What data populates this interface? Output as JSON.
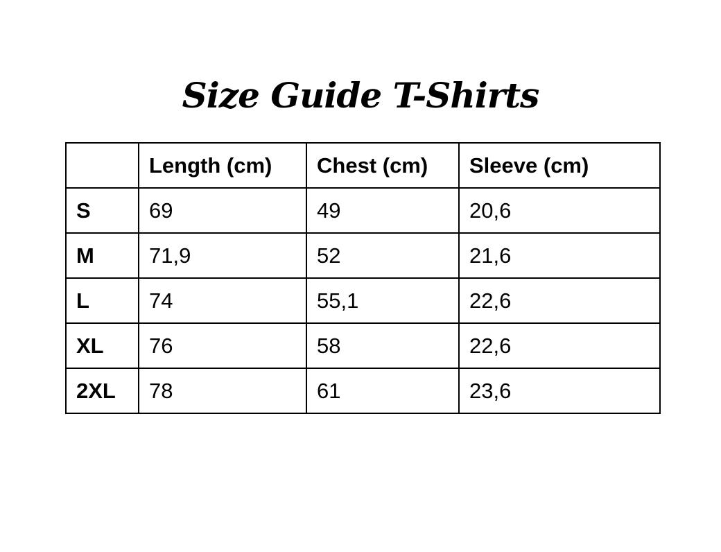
{
  "title": "Size Guide T-Shirts",
  "headers": [
    "",
    "Length (cm)",
    "Chest (cm)",
    "Sleeve (cm)"
  ],
  "rows": [
    [
      "S",
      "69",
      "49",
      "20,6"
    ],
    [
      "M",
      "71,9",
      "52",
      "21,6"
    ],
    [
      "L",
      "74",
      "55,1",
      "22,6"
    ],
    [
      "XL",
      "76",
      "58",
      "22,6"
    ],
    [
      "2XL",
      "78",
      "61",
      "23,6"
    ]
  ]
}
